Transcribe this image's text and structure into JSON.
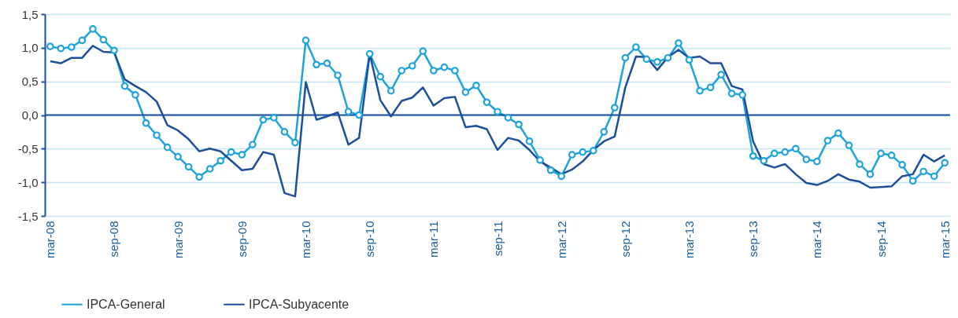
{
  "chart_data": {
    "type": "line",
    "categories": [
      "mar-08",
      null,
      null,
      null,
      null,
      null,
      "sep-08",
      null,
      null,
      null,
      null,
      null,
      "mar-09",
      null,
      null,
      null,
      null,
      null,
      "sep-09",
      null,
      null,
      null,
      null,
      null,
      "mar-10",
      null,
      null,
      null,
      null,
      null,
      "sep-10",
      null,
      null,
      null,
      null,
      null,
      "mar-11",
      null,
      null,
      null,
      null,
      null,
      "sep-11",
      null,
      null,
      null,
      null,
      null,
      "mar-12",
      null,
      null,
      null,
      null,
      null,
      "sep-12",
      null,
      null,
      null,
      null,
      null,
      "mar-13",
      null,
      null,
      null,
      null,
      null,
      "sep-13",
      null,
      null,
      null,
      null,
      null,
      "mar-14",
      null,
      null,
      null,
      null,
      null,
      "sep-14",
      null,
      null,
      null,
      null,
      null,
      "mar-15"
    ],
    "series": [
      {
        "name": "IPCA-General",
        "color": "#1fa3dc",
        "marker": "circle",
        "values": [
          1.02,
          0.99,
          1.01,
          1.11,
          1.28,
          1.12,
          0.96,
          0.43,
          0.3,
          -0.12,
          -0.3,
          -0.48,
          -0.62,
          -0.77,
          -0.92,
          -0.8,
          -0.68,
          -0.55,
          -0.59,
          -0.44,
          -0.07,
          -0.04,
          -0.25,
          -0.41,
          1.11,
          0.75,
          0.77,
          0.59,
          0.05,
          0.0,
          0.91,
          0.57,
          0.36,
          0.66,
          0.73,
          0.95,
          0.66,
          0.71,
          0.66,
          0.34,
          0.44,
          0.19,
          0.05,
          -0.04,
          -0.14,
          -0.39,
          -0.67,
          -0.82,
          -0.91,
          -0.59,
          -0.55,
          -0.53,
          -0.25,
          0.11,
          0.85,
          1.01,
          0.83,
          0.79,
          0.85,
          1.07,
          0.82,
          0.36,
          0.41,
          0.6,
          0.32,
          0.3,
          -0.61,
          -0.68,
          -0.57,
          -0.55,
          -0.5,
          -0.66,
          -0.69,
          -0.38,
          -0.27,
          -0.45,
          -0.73,
          -0.88,
          -0.57,
          -0.6,
          -0.74,
          -0.98,
          -0.84,
          -0.91,
          -0.71
        ]
      },
      {
        "name": "IPCA-Subyacente",
        "color": "#1c4f9c",
        "marker": "none",
        "values": [
          0.8,
          0.77,
          0.85,
          0.85,
          1.03,
          0.94,
          0.93,
          0.53,
          0.43,
          0.34,
          0.2,
          -0.15,
          -0.23,
          -0.36,
          -0.54,
          -0.5,
          -0.54,
          -0.68,
          -0.82,
          -0.8,
          -0.55,
          -0.59,
          -1.16,
          -1.21,
          0.49,
          -0.07,
          -0.02,
          0.04,
          -0.44,
          -0.34,
          0.91,
          0.22,
          -0.02,
          0.21,
          0.26,
          0.41,
          0.14,
          0.25,
          0.27,
          -0.18,
          -0.16,
          -0.21,
          -0.52,
          -0.34,
          -0.38,
          -0.52,
          -0.69,
          -0.78,
          -0.88,
          -0.81,
          -0.69,
          -0.52,
          -0.39,
          -0.32,
          0.41,
          0.87,
          0.86,
          0.67,
          0.86,
          0.97,
          0.85,
          0.87,
          0.77,
          0.77,
          0.43,
          0.38,
          -0.39,
          -0.73,
          -0.78,
          -0.73,
          -0.88,
          -1.01,
          -1.04,
          -0.98,
          -0.88,
          -0.96,
          -0.99,
          -1.08,
          -1.07,
          -1.06,
          -0.91,
          -0.88,
          -0.59,
          -0.69,
          -0.6
        ]
      }
    ],
    "ylim": [
      -1.5,
      1.5
    ],
    "yticks": [
      {
        "value": -1.5,
        "label": "-1,5"
      },
      {
        "value": -1.0,
        "label": "-1,0"
      },
      {
        "value": -0.5,
        "label": "-0,5"
      },
      {
        "value": 0.0,
        "label": "0,0"
      },
      {
        "value": 0.5,
        "label": "0,5"
      },
      {
        "value": 1.0,
        "label": "1,0"
      },
      {
        "value": 1.5,
        "label": "1,5"
      }
    ],
    "grid": "y",
    "ref_lines": [
      {
        "axis": "y",
        "value": 0,
        "color": "#1c4f9c"
      }
    ],
    "legend": "bottom left"
  }
}
